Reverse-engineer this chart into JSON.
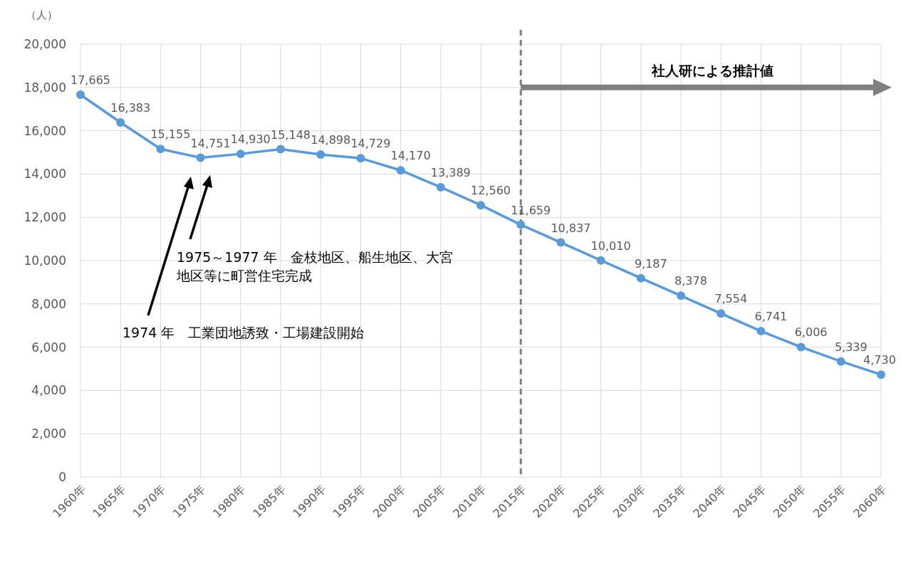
{
  "chart_data": {
    "type": "line",
    "ylabel": "（人）",
    "categories": [
      "1960年",
      "1965年",
      "1970年",
      "1975年",
      "1980年",
      "1985年",
      "1990年",
      "1995年",
      "2000年",
      "2005年",
      "2010年",
      "2015年",
      "2020年",
      "2025年",
      "2030年",
      "2035年",
      "2040年",
      "2045年",
      "2050年",
      "2055年",
      "2060年"
    ],
    "series": [
      {
        "color": "#5b9bd5",
        "values": [
          17665,
          16383,
          15155,
          14751,
          14930,
          15148,
          14898,
          14729,
          14170,
          13389,
          12560,
          11659,
          10837,
          10010,
          9187,
          8378,
          7554,
          6741,
          6006,
          5339,
          4730
        ],
        "value_labels": [
          "17,665",
          "16,383",
          "15,155",
          "14,751",
          "14,930",
          "15,148",
          "14,898",
          "14,729",
          "14,170",
          "13,389",
          "12,560",
          "11,659",
          "10,837",
          "10,010",
          "9,187",
          "8,378",
          "7,554",
          "6,741",
          "6,006",
          "5,339",
          "4,730"
        ]
      }
    ],
    "ylim": [
      0,
      20000
    ],
    "yticks": [
      {
        "value": 0,
        "label": "0"
      },
      {
        "value": 2000,
        "label": "2,000"
      },
      {
        "value": 4000,
        "label": "4,000"
      },
      {
        "value": 6000,
        "label": "6,000"
      },
      {
        "value": 8000,
        "label": "8,000"
      },
      {
        "value": 10000,
        "label": "10,000"
      },
      {
        "value": 12000,
        "label": "12,000"
      },
      {
        "value": 14000,
        "label": "14,000"
      },
      {
        "value": 16000,
        "label": "16,000"
      },
      {
        "value": 18000,
        "label": "18,000"
      },
      {
        "value": 20000,
        "label": "20,000"
      }
    ],
    "grid": true,
    "marker": "circle",
    "line_style": "solid",
    "ref_lines": [
      {
        "axis": "x",
        "value": "2015年",
        "color": "#7f7f7f",
        "line_style": "dashed"
      }
    ],
    "annotations": [
      "社人研による推計値",
      "1975～1977 年　金枝地区、船生地区、大宮地区等に町営住宅完成",
      "1974 年　工業団地誘致・工場建設開始"
    ]
  }
}
